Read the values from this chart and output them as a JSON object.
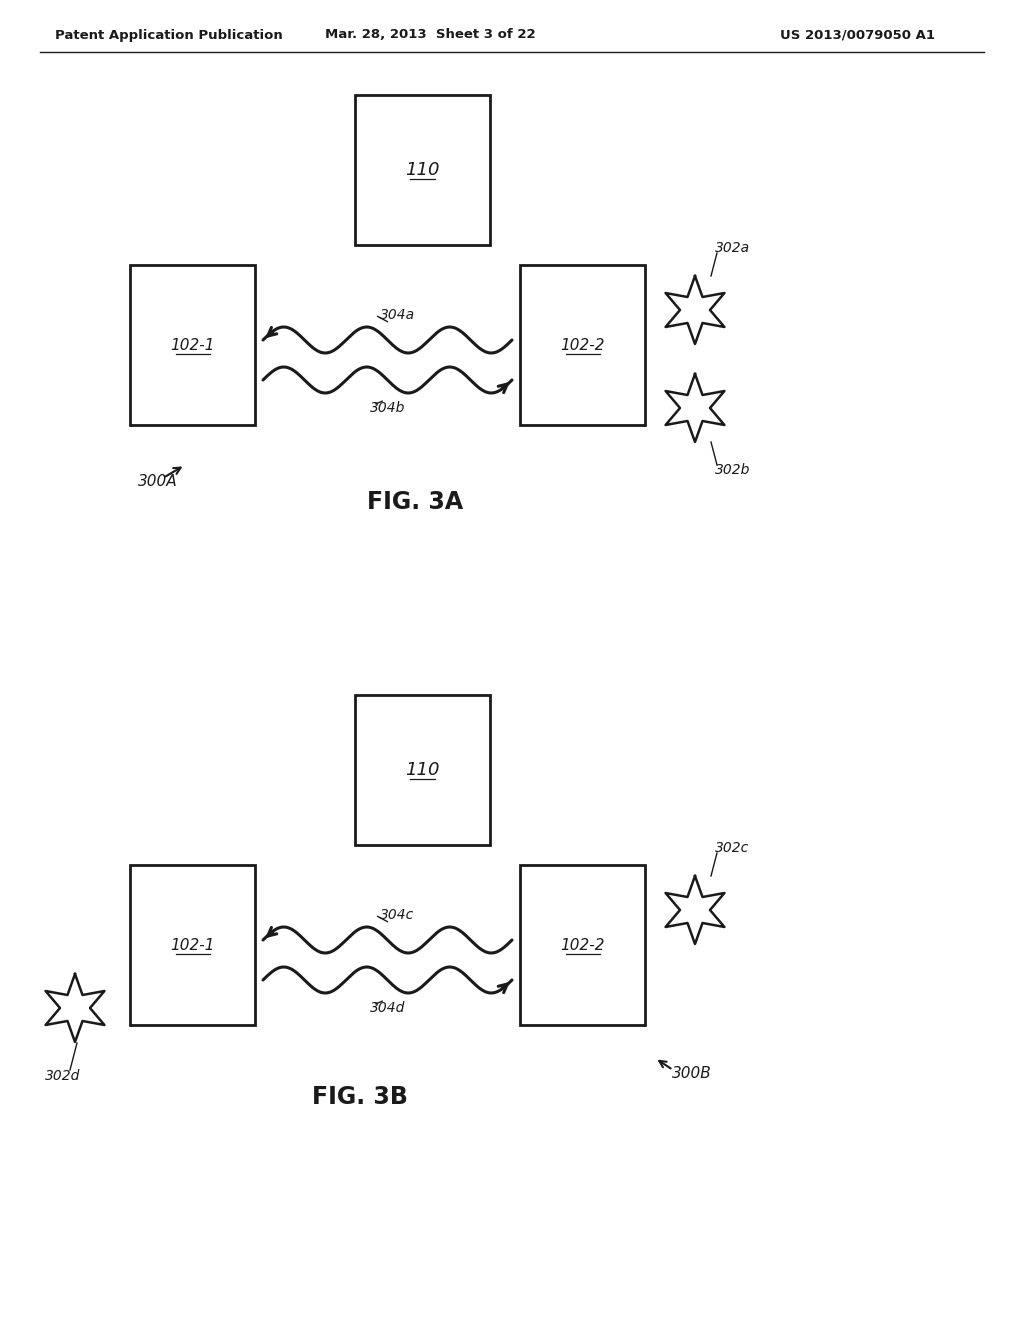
{
  "bg_color": "#ffffff",
  "header_left": "Patent Application Publication",
  "header_mid": "Mar. 28, 2013  Sheet 3 of 22",
  "header_right": "US 2013/0079050 A1",
  "fig3a_label": "FIG. 3A",
  "fig3b_label": "FIG. 3B",
  "label_110": "110",
  "label_102_1": "102-1",
  "label_102_2": "102-2",
  "label_304a": "304a",
  "label_304b": "304b",
  "label_302a": "302a",
  "label_302b": "302b",
  "label_300A": "300A",
  "label_304c": "304c",
  "label_304d": "304d",
  "label_302c": "302c",
  "label_302d": "302d",
  "label_300B": "300B",
  "line_color": "#1a1a1a",
  "text_color": "#1a1a1a"
}
